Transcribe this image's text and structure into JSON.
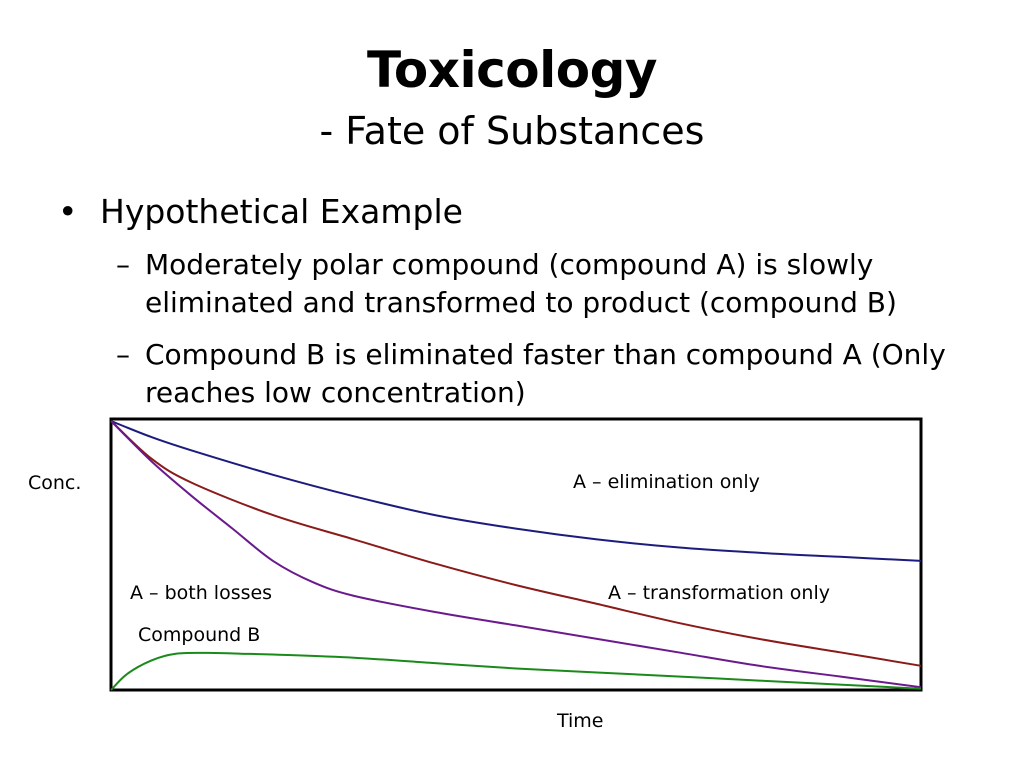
{
  "slide": {
    "title": "Toxicology",
    "subtitle": "- Fate of Substances",
    "bullet": "Hypothetical Example",
    "bullet_mark": "•",
    "sub_mark": "–",
    "sub_bullets": [
      "Moderately polar compound (compound A) is slowly eliminated and transformed to product (compound B)",
      "Compound B is eliminated faster than compound A (Only reaches low concentration)"
    ]
  },
  "chart_data": {
    "type": "line",
    "xlabel": "Time",
    "ylabel": "Conc.",
    "xlim": [
      0,
      100
    ],
    "ylim": [
      0,
      100
    ],
    "grid": false,
    "series": [
      {
        "name": "A – elimination only",
        "color": "#1c1c7e",
        "x": [
          0,
          5,
          10,
          20,
          30,
          40,
          50,
          60,
          70,
          80,
          90,
          100
        ],
        "y": [
          100,
          94,
          89,
          80,
          72,
          65,
          60,
          56,
          53,
          51,
          49.5,
          48
        ]
      },
      {
        "name": "A – transformation only",
        "color": "#8b1a1a",
        "x": [
          0,
          5,
          10,
          20,
          30,
          40,
          50,
          60,
          70,
          80,
          90,
          100
        ],
        "y": [
          100,
          86,
          77,
          65,
          56,
          47,
          39,
          32,
          25,
          19,
          14,
          9
        ]
      },
      {
        "name": "A – both losses",
        "color": "#6a1a8c",
        "x": [
          0,
          5,
          10,
          15,
          20,
          25,
          30,
          40,
          50,
          60,
          70,
          80,
          90,
          100
        ],
        "y": [
          100,
          85,
          72,
          60,
          48,
          40,
          35,
          29,
          24,
          19,
          14,
          9,
          5,
          1
        ]
      },
      {
        "name": "Compound B",
        "color": "#1a8a1a",
        "x": [
          0,
          2,
          5,
          8,
          12,
          16,
          20,
          30,
          40,
          50,
          60,
          70,
          80,
          90,
          100
        ],
        "y": [
          0,
          6,
          11,
          13.5,
          13.8,
          13.5,
          13.2,
          12,
          10,
          8,
          6.5,
          5,
          3.5,
          2,
          0.5
        ]
      }
    ]
  }
}
